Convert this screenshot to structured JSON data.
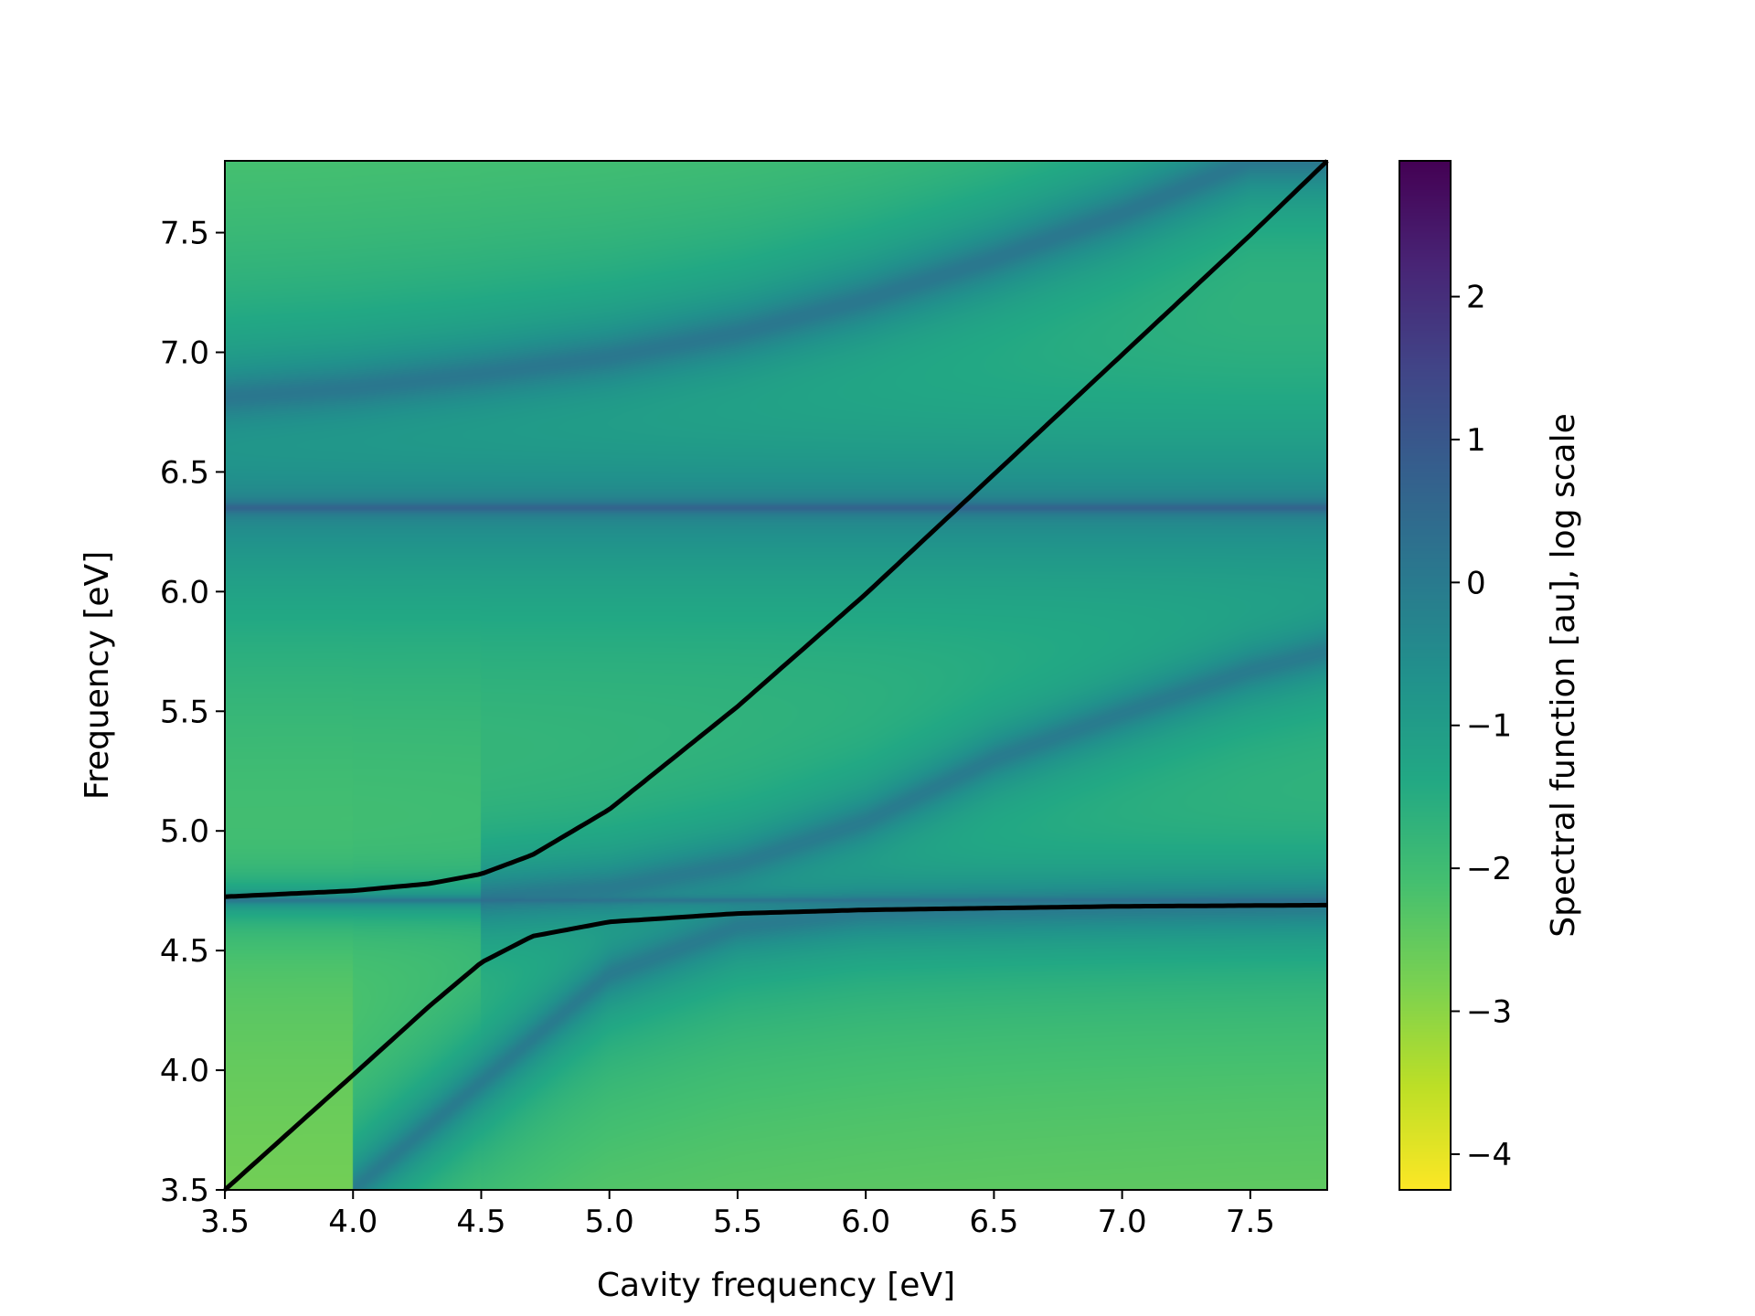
{
  "chart_data": {
    "type": "heatmap",
    "title": "",
    "xlabel": "Cavity frequency [eV]",
    "ylabel": "Frequency [eV]",
    "xlim": [
      3.5,
      7.8
    ],
    "ylim": [
      3.5,
      7.8
    ],
    "x_ticks": [
      "3.5",
      "4.0",
      "4.5",
      "5.0",
      "5.5",
      "6.0",
      "6.5",
      "7.0",
      "7.5"
    ],
    "y_ticks": [
      "3.5",
      "4.0",
      "4.5",
      "5.0",
      "5.5",
      "6.0",
      "6.5",
      "7.0",
      "7.5"
    ],
    "colorbar": {
      "label": "Spectral function [au], log scale",
      "ticks": [
        "−4",
        "−3",
        "−2",
        "−1",
        "0",
        "1",
        "2"
      ],
      "tick_values": [
        -4,
        -3,
        -2,
        -1,
        0,
        1,
        2
      ],
      "range": [
        -4.25,
        2.95
      ],
      "colormap": "viridis_r"
    },
    "features": {
      "horizontal_lines_eV": [
        6.35,
        4.71
      ],
      "upper_branch_eV": [
        [
          3.5,
          6.81
        ],
        [
          4.0,
          6.85
        ],
        [
          4.5,
          6.91
        ],
        [
          5.0,
          6.98
        ],
        [
          5.5,
          7.08
        ],
        [
          6.0,
          7.22
        ],
        [
          6.5,
          7.39
        ],
        [
          7.0,
          7.58
        ],
        [
          7.5,
          7.8
        ]
      ],
      "middle_branch_eV": [
        [
          4.5,
          4.72
        ],
        [
          5.0,
          4.76
        ],
        [
          5.5,
          4.86
        ],
        [
          6.0,
          5.04
        ],
        [
          6.5,
          5.3
        ],
        [
          7.0,
          5.49
        ],
        [
          7.5,
          5.67
        ],
        [
          7.8,
          5.75
        ]
      ],
      "lower_branch_eV": [
        [
          4.0,
          3.5
        ],
        [
          4.5,
          3.95
        ],
        [
          5.0,
          4.4
        ],
        [
          5.5,
          4.6
        ],
        [
          6.0,
          4.66
        ],
        [
          7.0,
          4.68
        ],
        [
          7.8,
          4.69
        ]
      ]
    },
    "curves": [
      {
        "points": [
          [
            3.5,
            4.725
          ],
          [
            4.0,
            4.75
          ],
          [
            4.3,
            4.78
          ],
          [
            4.5,
            4.82
          ],
          [
            4.7,
            4.9
          ],
          [
            5.0,
            5.09
          ],
          [
            5.5,
            5.52
          ],
          [
            6.0,
            5.99
          ],
          [
            6.5,
            6.49
          ],
          [
            7.0,
            6.99
          ],
          [
            7.5,
            7.49
          ],
          [
            7.8,
            7.8
          ]
        ]
      },
      {
        "points": [
          [
            3.5,
            3.5
          ],
          [
            4.0,
            3.98
          ],
          [
            4.3,
            4.27
          ],
          [
            4.5,
            4.45
          ],
          [
            4.7,
            4.56
          ],
          [
            5.0,
            4.62
          ],
          [
            5.5,
            4.655
          ],
          [
            6.0,
            4.67
          ],
          [
            7.0,
            4.685
          ],
          [
            7.8,
            4.69
          ]
        ]
      }
    ]
  }
}
